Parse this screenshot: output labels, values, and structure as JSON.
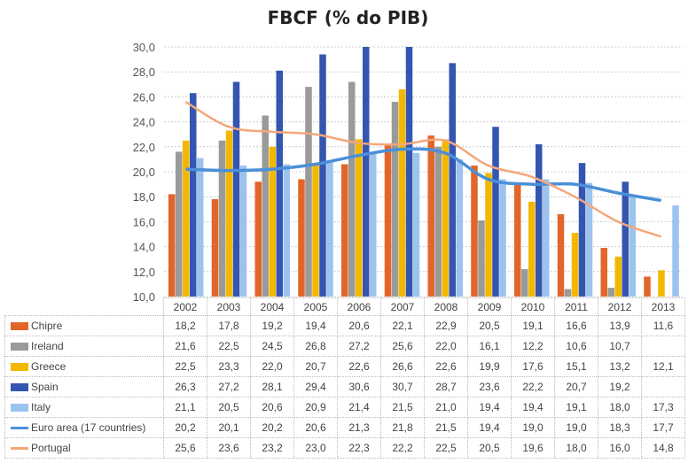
{
  "chart_data": {
    "type": "bar",
    "title": "FBCF (% do PIB)",
    "categories": [
      "2002",
      "2003",
      "2004",
      "2005",
      "2006",
      "2007",
      "2008",
      "2009",
      "2010",
      "2011",
      "2012",
      "2013"
    ],
    "ylim": [
      10,
      30
    ],
    "yticks": [
      "10,0",
      "12,0",
      "14,0",
      "16,0",
      "18,0",
      "20,0",
      "22,0",
      "24,0",
      "26,0",
      "28,0",
      "30,0"
    ],
    "grid": true,
    "legend": "data-table",
    "series": [
      {
        "name": "Chipre",
        "kind": "bar",
        "color": "#e2662a",
        "values": [
          18.2,
          17.8,
          19.2,
          19.4,
          20.6,
          22.1,
          22.9,
          20.5,
          19.1,
          16.6,
          13.9,
          11.6
        ],
        "labels": [
          "18,2",
          "17,8",
          "19,2",
          "19,4",
          "20,6",
          "22,1",
          "22,9",
          "20,5",
          "19,1",
          "16,6",
          "13,9",
          "11,6"
        ]
      },
      {
        "name": "Ireland",
        "kind": "bar",
        "color": "#9a9a9a",
        "values": [
          21.6,
          22.5,
          24.5,
          26.8,
          27.2,
          25.6,
          22.0,
          16.1,
          12.2,
          10.6,
          10.7,
          null
        ],
        "labels": [
          "21,6",
          "22,5",
          "24,5",
          "26,8",
          "27,2",
          "25,6",
          "22,0",
          "16,1",
          "12,2",
          "10,6",
          "10,7",
          ""
        ]
      },
      {
        "name": "Greece",
        "kind": "bar",
        "color": "#f2b800",
        "values": [
          22.5,
          23.3,
          22.0,
          20.7,
          22.6,
          26.6,
          22.6,
          19.9,
          17.6,
          15.1,
          13.2,
          12.1
        ],
        "labels": [
          "22,5",
          "23,3",
          "22,0",
          "20,7",
          "22,6",
          "26,6",
          "22,6",
          "19,9",
          "17,6",
          "15,1",
          "13,2",
          "12,1"
        ]
      },
      {
        "name": "Spain",
        "kind": "bar",
        "color": "#3456b0",
        "values": [
          26.3,
          27.2,
          28.1,
          29.4,
          30.6,
          30.7,
          28.7,
          23.6,
          22.2,
          20.7,
          19.2,
          null
        ],
        "labels": [
          "26,3",
          "27,2",
          "28,1",
          "29,4",
          "30,6",
          "30,7",
          "28,7",
          "23,6",
          "22,2",
          "20,7",
          "19,2",
          ""
        ]
      },
      {
        "name": "Italy",
        "kind": "bar",
        "color": "#9cc3ee",
        "values": [
          21.1,
          20.5,
          20.6,
          20.9,
          21.4,
          21.5,
          21.0,
          19.4,
          19.4,
          19.1,
          18.0,
          17.3
        ],
        "labels": [
          "21,1",
          "20,5",
          "20,6",
          "20,9",
          "21,4",
          "21,5",
          "21,0",
          "19,4",
          "19,4",
          "19,1",
          "18,0",
          "17,3"
        ]
      },
      {
        "name": "Euro area (17 countries)",
        "kind": "line",
        "color": "#4a8fd8",
        "values": [
          20.2,
          20.1,
          20.2,
          20.6,
          21.3,
          21.8,
          21.5,
          19.4,
          19.0,
          19.0,
          18.3,
          17.7
        ],
        "labels": [
          "20,2",
          "20,1",
          "20,2",
          "20,6",
          "21,3",
          "21,8",
          "21,5",
          "19,4",
          "19,0",
          "19,0",
          "18,3",
          "17,7"
        ]
      },
      {
        "name": "Portugal",
        "kind": "line",
        "color": "#f4a77a",
        "values": [
          25.6,
          23.6,
          23.2,
          23.0,
          22.3,
          22.2,
          22.5,
          20.5,
          19.6,
          18.0,
          16.0,
          14.8
        ],
        "labels": [
          "25,6",
          "23,6",
          "23,2",
          "23,0",
          "22,3",
          "22,2",
          "22,5",
          "20,5",
          "19,6",
          "18,0",
          "16,0",
          "14,8"
        ]
      }
    ]
  }
}
